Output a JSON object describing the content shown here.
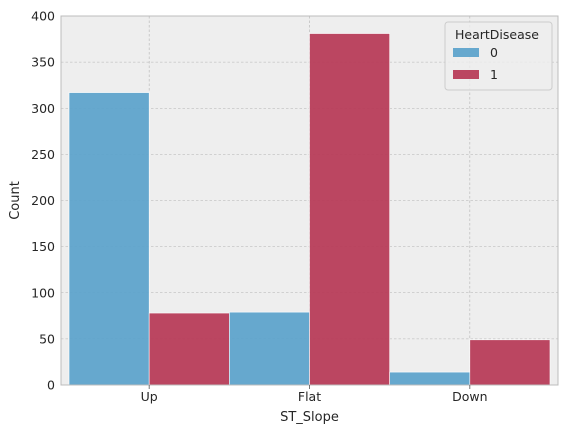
{
  "chart_data": {
    "type": "bar",
    "title": "",
    "xlabel": "ST_Slope",
    "ylabel": "Count",
    "categories": [
      "Up",
      "Flat",
      "Down"
    ],
    "ylim": [
      0,
      400
    ],
    "yticks": [
      0,
      50,
      100,
      150,
      200,
      250,
      300,
      350,
      400
    ],
    "grid": true,
    "series": [
      {
        "name": "0",
        "values": [
          317,
          79,
          14
        ],
        "color": "#5ea3cb"
      },
      {
        "name": "1",
        "values": [
          78,
          381,
          49
        ],
        "color": "#b73c59"
      }
    ],
    "legend": {
      "title": "HeartDisease",
      "position": "top-right"
    },
    "style": {
      "plot_background": "#eeeeee",
      "grid_color": "#b2b2b2",
      "axis_color": "#bcbcbc"
    }
  }
}
